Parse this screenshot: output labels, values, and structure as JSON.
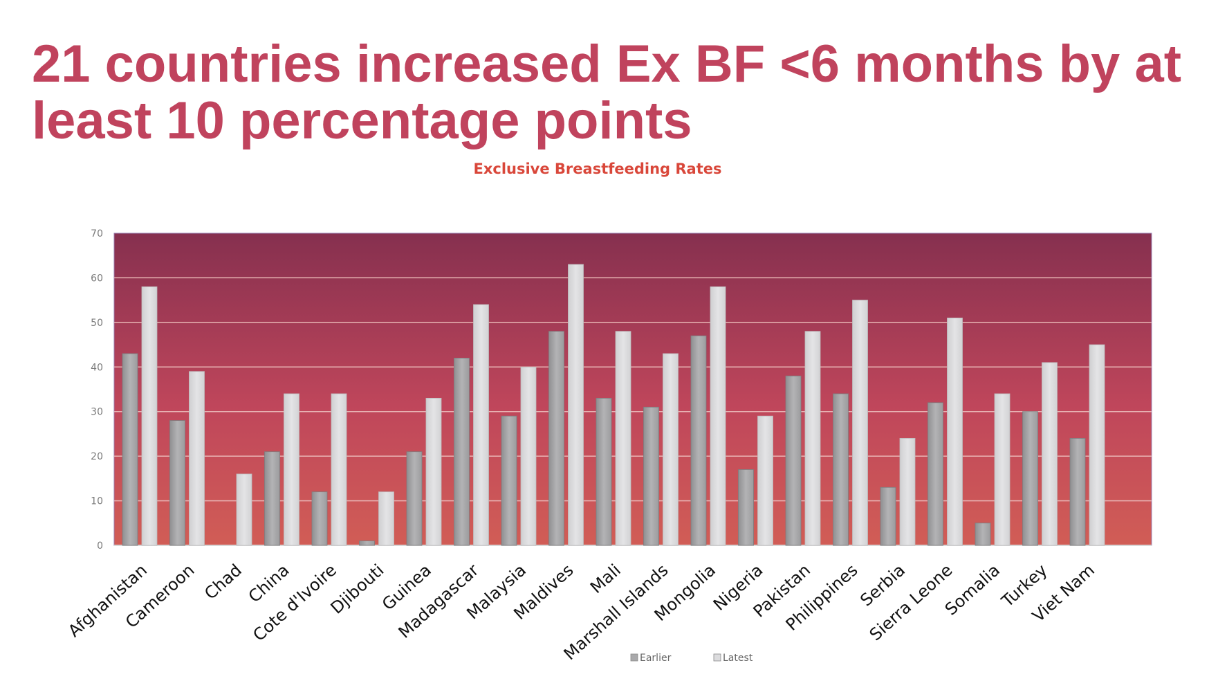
{
  "slide": {
    "title": "21 countries increased Ex BF <6 months by at least 10 percentage points",
    "title_color": "#c0435d"
  },
  "chart_data": {
    "type": "bar",
    "title": "Exclusive Breastfeeding Rates",
    "title_color": "#d9473a",
    "xlabel": "",
    "ylabel": "",
    "ylim": [
      0,
      70
    ],
    "yticks": [
      0,
      10,
      20,
      30,
      40,
      50,
      60,
      70
    ],
    "grid": true,
    "legend_position": "bottom",
    "background_gradient": [
      "#86304f",
      "#d15d56"
    ],
    "categories": [
      "Afghanistan",
      "Cameroon",
      "Chad",
      "China",
      "Cote d'Ivoire",
      "Djibouti",
      "Guinea",
      "Madagascar",
      "Malaysia",
      "Maldives",
      "Mali",
      "Marshall Islands",
      "Mongolia",
      "Nigeria",
      "Pakistan",
      "Philippines",
      "Serbia",
      "Sierra Leone",
      "Somalia",
      "Turkey",
      "Viet Nam"
    ],
    "series": [
      {
        "name": "Earlier",
        "color": "#a9a9ab",
        "values": [
          43,
          28,
          null,
          21,
          12,
          1,
          21,
          42,
          29,
          48,
          33,
          31,
          47,
          17,
          38,
          34,
          13,
          32,
          5,
          30,
          24
        ]
      },
      {
        "name": "Latest",
        "color": "#dcdcde",
        "values": [
          58,
          39,
          16,
          34,
          34,
          12,
          33,
          54,
          40,
          63,
          48,
          43,
          58,
          29,
          48,
          55,
          24,
          51,
          34,
          41,
          45
        ]
      }
    ]
  }
}
